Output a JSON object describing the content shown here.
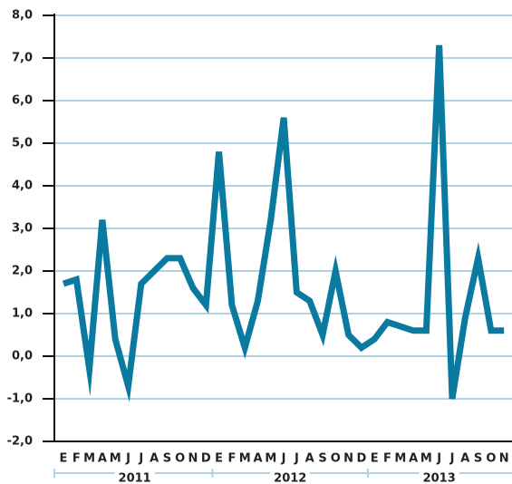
{
  "chart_data": {
    "type": "line",
    "categories": [
      "E",
      "F",
      "M",
      "A",
      "M",
      "J",
      "J",
      "A",
      "S",
      "O",
      "N",
      "D",
      "E",
      "F",
      "M",
      "A",
      "M",
      "J",
      "J",
      "A",
      "S",
      "O",
      "N",
      "D",
      "E",
      "F",
      "M",
      "A",
      "M",
      "J",
      "J",
      "A",
      "S",
      "O",
      "N"
    ],
    "years": [
      "2011",
      "2012",
      "2013"
    ],
    "series": [
      {
        "color": "#0b7aa1",
        "values": [
          1.7,
          1.8,
          -0.3,
          3.2,
          0.4,
          -0.7,
          1.7,
          2.0,
          2.3,
          2.3,
          1.6,
          1.2,
          4.8,
          1.2,
          0.2,
          1.3,
          3.2,
          5.6,
          1.5,
          1.3,
          0.5,
          2.0,
          0.5,
          0.2,
          0.4,
          0.8,
          0.7,
          0.6,
          0.6,
          7.3,
          -1.0,
          0.9,
          2.3,
          0.6,
          0.6
        ]
      }
    ],
    "ylim": [
      -2,
      8
    ],
    "yticks": [
      {
        "value": -2,
        "label": "-2,0"
      },
      {
        "value": -1,
        "label": "-1,0"
      },
      {
        "value": 0,
        "label": "0,0"
      },
      {
        "value": 1,
        "label": "1,0"
      },
      {
        "value": 2,
        "label": "2,0"
      },
      {
        "value": 3,
        "label": "3,0"
      },
      {
        "value": 4,
        "label": "4,0"
      },
      {
        "value": 5,
        "label": "5,0"
      },
      {
        "value": 6,
        "label": "6,0"
      },
      {
        "value": 7,
        "label": "7,0"
      },
      {
        "value": 8,
        "label": "8,0"
      }
    ],
    "grid": true,
    "grid_color": "#aed3e3"
  }
}
